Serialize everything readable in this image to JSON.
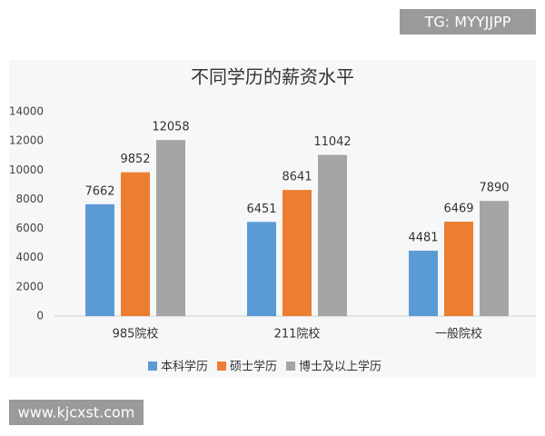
{
  "chart_data": {
    "type": "bar",
    "title": "不同学历的薪资水平",
    "categories": [
      "985院校",
      "211院校",
      "一般院校"
    ],
    "series": [
      {
        "name": "本科学历",
        "color": "#5b9bd5",
        "values": [
          7662,
          6451,
          4481
        ]
      },
      {
        "name": "硕士学历",
        "color": "#ed7d31",
        "values": [
          9852,
          8641,
          6469
        ]
      },
      {
        "name": "博士及以上学历",
        "color": "#a5a5a5",
        "values": [
          12058,
          11042,
          7890
        ]
      }
    ],
    "ylim": [
      0,
      14000
    ],
    "yticks": [
      0,
      2000,
      4000,
      6000,
      8000,
      10000,
      12000,
      14000
    ],
    "legend": "bottom"
  },
  "watermarks": [
    "TG: MYYJJPP",
    "www.kjcxst.com"
  ]
}
